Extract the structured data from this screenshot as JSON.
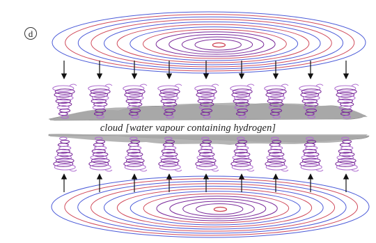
{
  "panel": {
    "letter": "d"
  },
  "cloud": {
    "label": "cloud [water vapour containing hydrogen]"
  },
  "colors": {
    "outer_blue": "#4a5ad8",
    "outer_red": "#d04a5a",
    "spiral": "#7a2a9a",
    "spiral_light": "#b070d0",
    "cloud_fill": "#a8a8a8",
    "arrow": "#111111"
  }
}
